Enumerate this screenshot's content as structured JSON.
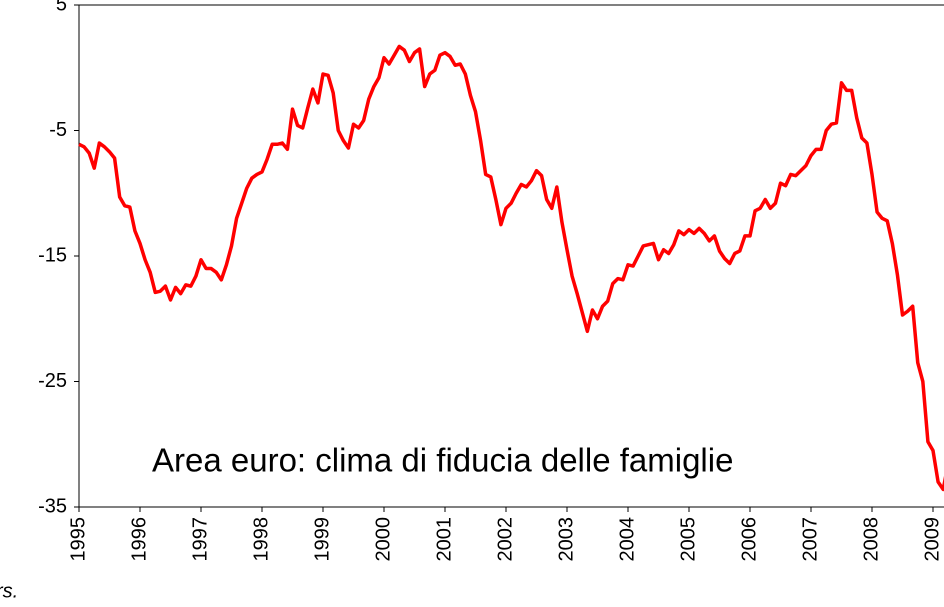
{
  "chart_data": {
    "type": "line",
    "annotation": "Area euro: clima di fiducia delle famiglie",
    "footnote": "rs.",
    "categories": [
      "1995",
      null,
      null,
      null,
      null,
      null,
      null,
      null,
      null,
      null,
      null,
      null,
      "1996",
      null,
      null,
      null,
      null,
      null,
      null,
      null,
      null,
      null,
      null,
      null,
      "1997",
      null,
      null,
      null,
      null,
      null,
      null,
      null,
      null,
      null,
      null,
      null,
      "1998",
      null,
      null,
      null,
      null,
      null,
      null,
      null,
      null,
      null,
      null,
      null,
      "1999",
      null,
      null,
      null,
      null,
      null,
      null,
      null,
      null,
      null,
      null,
      null,
      "2000",
      null,
      null,
      null,
      null,
      null,
      null,
      null,
      null,
      null,
      null,
      null,
      "2001",
      null,
      null,
      null,
      null,
      null,
      null,
      null,
      null,
      null,
      null,
      null,
      "2002",
      null,
      null,
      null,
      null,
      null,
      null,
      null,
      null,
      null,
      null,
      null,
      "2003",
      null,
      null,
      null,
      null,
      null,
      null,
      null,
      null,
      null,
      null,
      null,
      "2004",
      null,
      null,
      null,
      null,
      null,
      null,
      null,
      null,
      null,
      null,
      null,
      "2005",
      null,
      null,
      null,
      null,
      null,
      null,
      null,
      null,
      null,
      null,
      null,
      "2006",
      null,
      null,
      null,
      null,
      null,
      null,
      null,
      null,
      null,
      null,
      null,
      "2007",
      null,
      null,
      null,
      null,
      null,
      null,
      null,
      null,
      null,
      null,
      null,
      "2008",
      null,
      null,
      null,
      null,
      null,
      null,
      null,
      null,
      null,
      null,
      null,
      "2009",
      null,
      null,
      null
    ],
    "values": [
      -6.1,
      -6.3,
      -6.8,
      -8.0,
      -6.0,
      -6.3,
      -6.7,
      -7.2,
      -10.3,
      -11.0,
      -11.1,
      -13.0,
      -14.0,
      -15.3,
      -16.3,
      -17.9,
      -17.8,
      -17.4,
      -18.5,
      -17.5,
      -18.0,
      -17.3,
      -17.4,
      -16.6,
      -15.3,
      -16.0,
      -16.0,
      -16.3,
      -16.9,
      -15.7,
      -14.2,
      -12.0,
      -10.8,
      -9.6,
      -8.8,
      -8.5,
      -8.3,
      -7.3,
      -6.1,
      -6.1,
      -6.0,
      -6.5,
      -3.3,
      -4.6,
      -4.8,
      -3.2,
      -1.7,
      -2.8,
      -0.5,
      -0.6,
      -2.0,
      -5.0,
      -5.8,
      -6.4,
      -4.5,
      -4.8,
      -4.2,
      -2.5,
      -1.5,
      -0.8,
      0.8,
      0.3,
      1.0,
      1.7,
      1.4,
      0.5,
      1.2,
      1.5,
      -1.5,
      -0.5,
      -0.2,
      1.0,
      1.2,
      0.9,
      0.2,
      0.3,
      -0.5,
      -2.2,
      -3.5,
      -5.8,
      -8.5,
      -8.7,
      -10.5,
      -12.5,
      -11.2,
      -10.8,
      -10.0,
      -9.3,
      -9.5,
      -9.0,
      -8.2,
      -8.6,
      -10.5,
      -11.2,
      -9.5,
      -12.3,
      -14.5,
      -16.6,
      -18.0,
      -19.5,
      -21.0,
      -19.3,
      -20.0,
      -19.0,
      -18.6,
      -17.2,
      -16.8,
      -16.9,
      -15.7,
      -15.8,
      -15.0,
      -14.2,
      -14.1,
      -14.0,
      -15.3,
      -14.5,
      -14.8,
      -14.1,
      -13.0,
      -13.3,
      -12.9,
      -13.2,
      -12.8,
      -13.2,
      -13.8,
      -13.4,
      -14.6,
      -15.2,
      -15.6,
      -14.8,
      -14.6,
      -13.4,
      -13.4,
      -11.4,
      -11.2,
      -10.5,
      -11.2,
      -10.8,
      -9.2,
      -9.4,
      -8.5,
      -8.6,
      -8.2,
      -7.8,
      -7.0,
      -6.5,
      -6.5,
      -5.0,
      -4.5,
      -4.4,
      -1.2,
      -1.8,
      -1.8,
      -4.0,
      -5.6,
      -6.0,
      -8.5,
      -11.5,
      -12.0,
      -12.2,
      -14.0,
      -16.5,
      -19.7,
      -19.4,
      -19.0,
      -23.5,
      -25.0,
      -29.8,
      -30.5,
      -33.0,
      -33.6,
      -31.5
    ],
    "color": "#ff0000",
    "ylim": [
      -35,
      5
    ],
    "yticks": [
      5,
      -5,
      -15,
      -25,
      -35
    ]
  }
}
